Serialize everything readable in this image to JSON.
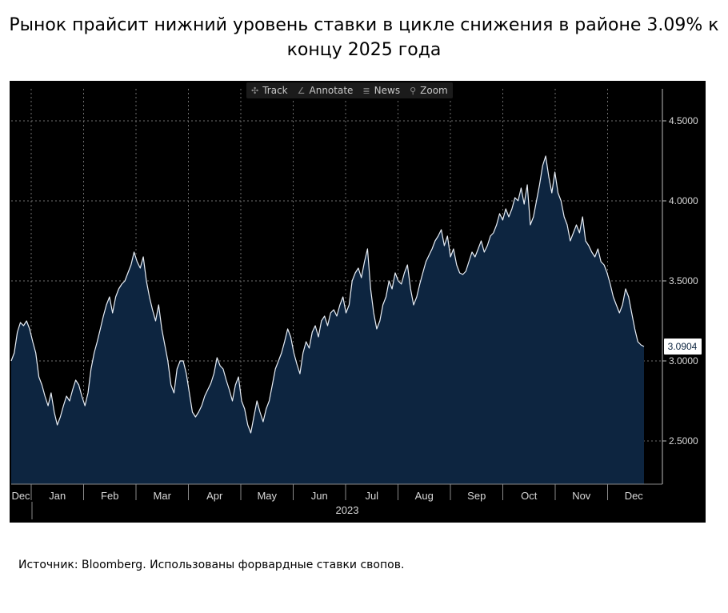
{
  "title": "Рынок прайсит нижний уровень ставки в цикле снижения в районе 3.09% к концу 2025 года",
  "source": "Источник: Bloomberg. Использованы форвардные ставки свопов.",
  "toolbar": {
    "items": [
      {
        "icon": "crosshair-icon",
        "glyph": "✣",
        "label": "Track"
      },
      {
        "icon": "pencil-icon",
        "glyph": "∠",
        "label": "Annotate"
      },
      {
        "icon": "news-icon",
        "glyph": "≣",
        "label": "News"
      },
      {
        "icon": "zoom-icon",
        "glyph": "⚲",
        "label": "Zoom"
      }
    ]
  },
  "colors": {
    "background": "#000000",
    "area_fill": "#0d2540",
    "line": "#e8eef6",
    "grid": "#6f6f6f",
    "text": "#d8d8d8",
    "last_label_bg": "#ffffff",
    "last_label_text": "#0d2540"
  },
  "chart_data": {
    "type": "area",
    "title": "",
    "xlabel": "2023",
    "ylabel": "",
    "ylim": [
      2.23,
      4.7
    ],
    "yticks": [
      "2.5000",
      "3.0000",
      "3.5000",
      "4.0000",
      "4.5000"
    ],
    "ytick_values": [
      2.5,
      3.0,
      3.5,
      4.0,
      4.5
    ],
    "xticks": [
      "Dec",
      "Jan",
      "Feb",
      "Mar",
      "Apr",
      "May",
      "Jun",
      "Jul",
      "Aug",
      "Sep",
      "Oct",
      "Nov",
      "Dec"
    ],
    "x_year_label": "2023",
    "last_value_label": "3.0904",
    "grid": true,
    "series": [
      {
        "values": [
          3.0,
          3.05,
          3.18,
          3.24,
          3.22,
          3.25,
          3.2,
          3.12,
          3.05,
          2.9,
          2.85,
          2.78,
          2.72,
          2.8,
          2.68,
          2.6,
          2.65,
          2.72,
          2.78,
          2.75,
          2.82,
          2.88,
          2.85,
          2.78,
          2.72,
          2.8,
          2.95,
          3.05,
          3.12,
          3.2,
          3.28,
          3.35,
          3.4,
          3.3,
          3.4,
          3.45,
          3.48,
          3.5,
          3.55,
          3.6,
          3.68,
          3.62,
          3.58,
          3.65,
          3.5,
          3.4,
          3.32,
          3.25,
          3.35,
          3.2,
          3.1,
          3.0,
          2.85,
          2.8,
          2.95,
          3.0,
          3.0,
          2.92,
          2.8,
          2.68,
          2.65,
          2.68,
          2.72,
          2.78,
          2.82,
          2.86,
          2.92,
          3.02,
          2.97,
          2.95,
          2.88,
          2.82,
          2.75,
          2.85,
          2.9,
          2.75,
          2.7,
          2.6,
          2.55,
          2.65,
          2.75,
          2.68,
          2.62,
          2.7,
          2.75,
          2.85,
          2.95,
          3.0,
          3.05,
          3.12,
          3.2,
          3.15,
          3.05,
          2.98,
          2.92,
          3.05,
          3.12,
          3.08,
          3.18,
          3.22,
          3.15,
          3.25,
          3.28,
          3.22,
          3.3,
          3.32,
          3.28,
          3.35,
          3.4,
          3.3,
          3.35,
          3.5,
          3.55,
          3.58,
          3.52,
          3.62,
          3.7,
          3.45,
          3.3,
          3.2,
          3.25,
          3.35,
          3.4,
          3.5,
          3.45,
          3.55,
          3.5,
          3.48,
          3.55,
          3.6,
          3.45,
          3.35,
          3.4,
          3.48,
          3.55,
          3.62,
          3.66,
          3.7,
          3.75,
          3.78,
          3.82,
          3.72,
          3.78,
          3.65,
          3.7,
          3.6,
          3.55,
          3.54,
          3.56,
          3.62,
          3.68,
          3.65,
          3.7,
          3.75,
          3.68,
          3.72,
          3.78,
          3.8,
          3.85,
          3.92,
          3.88,
          3.95,
          3.9,
          3.95,
          4.02,
          4.0,
          4.08,
          3.98,
          4.1,
          3.85,
          3.9,
          4.0,
          4.1,
          4.22,
          4.28,
          4.15,
          4.05,
          4.18,
          4.05,
          4.0,
          3.9,
          3.85,
          3.75,
          3.8,
          3.85,
          3.8,
          3.9,
          3.75,
          3.72,
          3.68,
          3.65,
          3.7,
          3.62,
          3.6,
          3.55,
          3.48,
          3.4,
          3.35,
          3.3,
          3.35,
          3.45,
          3.4,
          3.3,
          3.2,
          3.12,
          3.1,
          3.09
        ]
      }
    ]
  }
}
